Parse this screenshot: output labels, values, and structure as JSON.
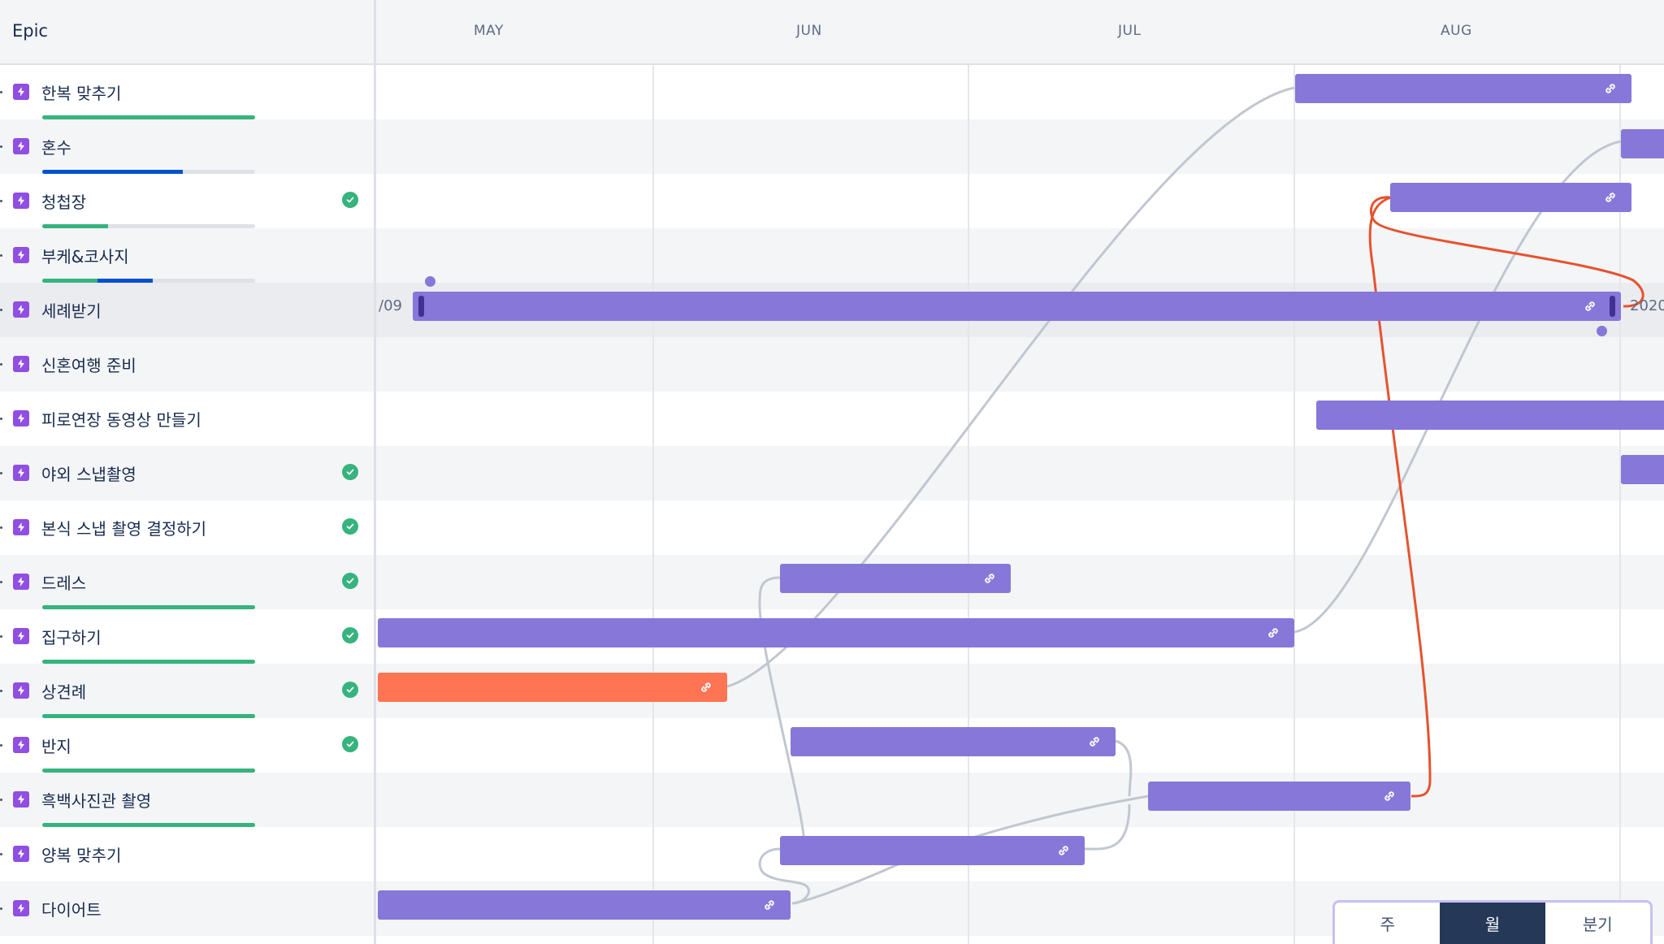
{
  "header": {
    "epic_column_title": "Epic",
    "months": [
      "MAY",
      "JUN",
      "JUL",
      "AUG"
    ]
  },
  "epics": [
    {
      "name": "한복 맞추기",
      "done": false
    },
    {
      "name": "혼수",
      "done": false
    },
    {
      "name": "청첩장",
      "done": true
    },
    {
      "name": "부케&코사지",
      "done": false
    },
    {
      "name": "세례받기",
      "done": false
    },
    {
      "name": "신혼여행 준비",
      "done": false
    },
    {
      "name": "피로연장 동영상 만들기",
      "done": false
    },
    {
      "name": "야외 스냅촬영",
      "done": true
    },
    {
      "name": "본식 스냅 촬영 결정하기",
      "done": true
    },
    {
      "name": "드레스",
      "done": true
    },
    {
      "name": "집구하기",
      "done": true
    },
    {
      "name": "상견례",
      "done": true
    },
    {
      "name": "반지",
      "done": true
    },
    {
      "name": "흑백사진관 촬영",
      "done": false
    },
    {
      "name": "양복 맞추기",
      "done": false
    },
    {
      "name": "다이어트",
      "done": false
    }
  ],
  "progress": {
    "한복 맞추기": {
      "done": 1.0,
      "in_progress": 0.0
    },
    "혼수": {
      "done": 0.0,
      "in_progress": 0.66
    },
    "청첩장": {
      "done": 0.31,
      "in_progress": 0.0
    },
    "부케&코사지": {
      "done": 0.26,
      "in_progress": 0.26
    },
    "드레스": {
      "done": 1.0,
      "in_progress": 0.0
    },
    "집구하기": {
      "done": 1.0,
      "in_progress": 0.0
    },
    "상견례": {
      "done": 1.0,
      "in_progress": 0.0
    },
    "반지": {
      "done": 1.0,
      "in_progress": 0.0
    },
    "흑백사진관 촬영": {
      "done": 1.0,
      "in_progress": 0.0
    }
  },
  "timeline": {
    "start_date_label": "/09",
    "end_date_label": "2020"
  },
  "colors": {
    "bar": "#8777d9",
    "bar_highlight": "#ff7452",
    "done_progress": "#36b37e",
    "in_progress": "#0052cc",
    "dependency_line": "#c1c7d0",
    "dependency_conflict": "#e5532e",
    "epic_icon": "#904ee2"
  },
  "view_switcher": {
    "options": [
      "주",
      "월",
      "분기"
    ],
    "selected": "월"
  }
}
